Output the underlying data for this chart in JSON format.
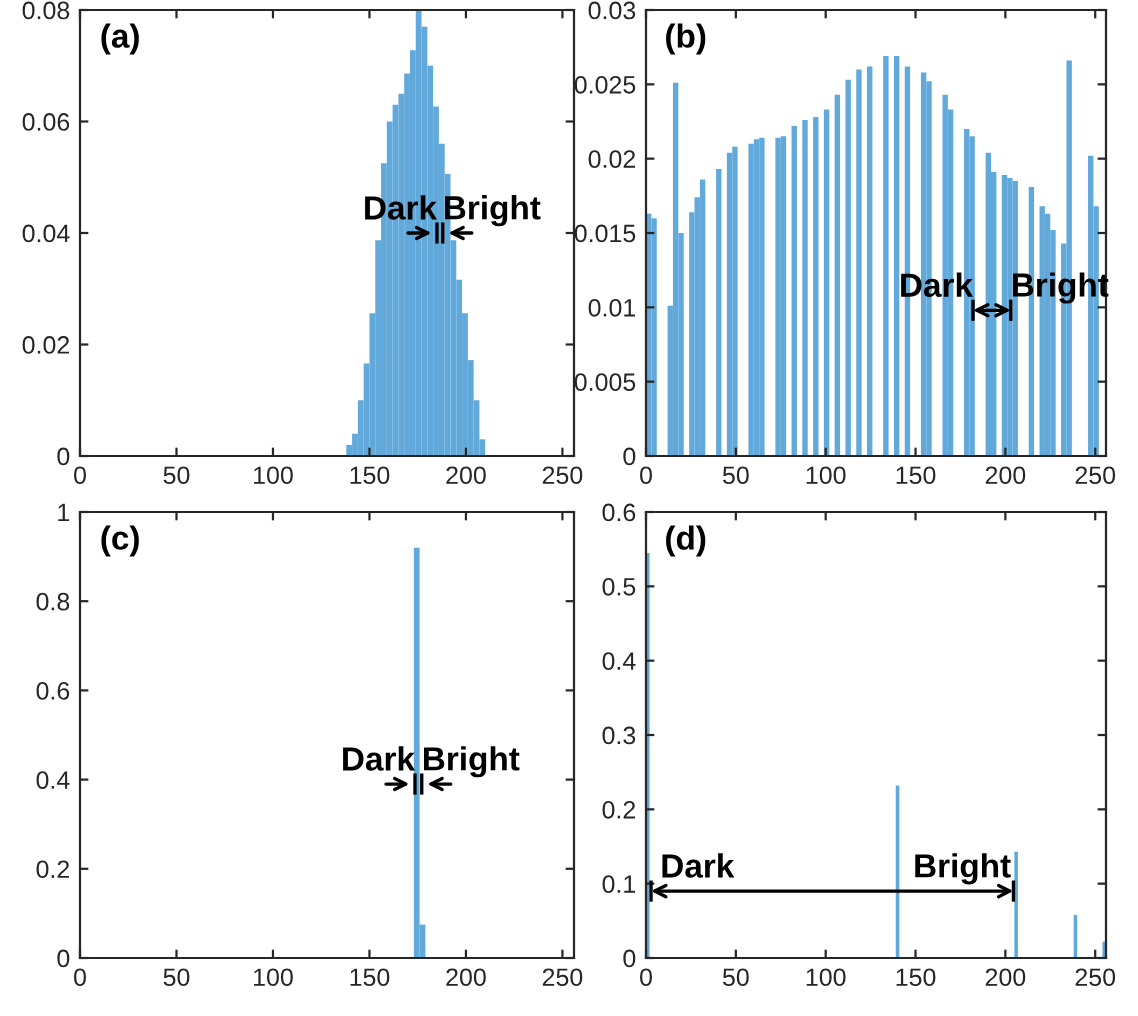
{
  "chart_data": [
    {
      "type": "histogram",
      "title": "(a)",
      "color": "#62a9db",
      "bins": [
        138,
        141,
        144,
        147,
        150,
        153,
        156,
        159,
        162,
        165,
        168,
        171,
        174,
        177,
        180,
        183,
        186,
        189,
        192,
        195,
        198,
        201,
        204,
        207,
        210
      ],
      "values": [
        0.002,
        0.004,
        0.01,
        0.0166,
        0.0256,
        0.0387,
        0.0525,
        0.06,
        0.063,
        0.065,
        0.0686,
        0.0728,
        0.08,
        0.077,
        0.07,
        0.0627,
        0.056,
        0.0506,
        0.0387,
        0.0316,
        0.0256,
        0.0172,
        0.01,
        0.003
      ],
      "xlim": [
        0,
        256
      ],
      "xticks": [
        0,
        50,
        100,
        150,
        200,
        250
      ],
      "ylim": [
        0,
        0.08
      ],
      "yticks": [
        0,
        0.02,
        0.04,
        0.06,
        0.08
      ],
      "grid": false,
      "annotations": [
        {
          "text": "Dark",
          "x": 185,
          "y": 0.04
        },
        {
          "text": "Bright",
          "x": 188,
          "y": 0.04
        }
      ]
    },
    {
      "type": "histogram",
      "title": "(b)",
      "color": "#62a9db",
      "bins": [
        0,
        3,
        6,
        9,
        12,
        15,
        18,
        21,
        24,
        27,
        30,
        33,
        36,
        39,
        42,
        45,
        48,
        51,
        54,
        57,
        60,
        63,
        66,
        69,
        72,
        75,
        78,
        81,
        84,
        87,
        90,
        93,
        96,
        99,
        102,
        105,
        108,
        111,
        114,
        117,
        120,
        123,
        126,
        129,
        132,
        135,
        138,
        141,
        144,
        147,
        150,
        153,
        156,
        159,
        162,
        165,
        168,
        171,
        174,
        177,
        180,
        183,
        186,
        189,
        192,
        195,
        198,
        201,
        204,
        207,
        210,
        213,
        216,
        219,
        222,
        225,
        228,
        231,
        234,
        237,
        240,
        243,
        246,
        249,
        252,
        255
      ],
      "values": [
        0.0163,
        0.016,
        0,
        0,
        0.0101,
        0.0251,
        0.015,
        0,
        0.0164,
        0.0174,
        0.0186,
        0,
        0,
        0.0193,
        0,
        0.0204,
        0.0208,
        0,
        0,
        0.021,
        0.0213,
        0.0214,
        0,
        0,
        0.0214,
        0.0215,
        0,
        0.0222,
        0,
        0.0226,
        0,
        0.0228,
        0,
        0.0233,
        0,
        0.0243,
        0,
        0.0253,
        0,
        0.026,
        0,
        0.0262,
        0,
        0,
        0.0269,
        0,
        0.0269,
        0,
        0.0262,
        0,
        0,
        0.0258,
        0.0252,
        0,
        0,
        0.0243,
        0.0233,
        0,
        0,
        0.022,
        0.0215,
        0,
        0,
        0.0204,
        0.0191,
        0,
        0.0189,
        0.0187,
        0.0185,
        0,
        0,
        0.0181,
        0,
        0.0168,
        0.0163,
        0.0152,
        0,
        0.0143,
        0.0266,
        0,
        0,
        0,
        0.0202,
        0.0168,
        0
      ],
      "xlim": [
        0,
        256
      ],
      "xticks": [
        0,
        50,
        100,
        150,
        200,
        250
      ],
      "ylim": [
        0,
        0.03
      ],
      "yticks": [
        0,
        0.005,
        0.01,
        0.015,
        0.02,
        0.025,
        0.03
      ],
      "grid": false,
      "annotations": [
        {
          "text": "Dark",
          "x": 182,
          "y": 0.0098
        },
        {
          "text": "Bright",
          "x": 203,
          "y": 0.0098
        }
      ]
    },
    {
      "type": "histogram",
      "title": "(c)",
      "color": "#62a9db",
      "bins": [
        173,
        176,
        179
      ],
      "values": [
        0.92,
        0.075
      ],
      "xlim": [
        0,
        256
      ],
      "xticks": [
        0,
        50,
        100,
        150,
        200,
        250
      ],
      "ylim": [
        0,
        1
      ],
      "yticks": [
        0,
        0.2,
        0.4,
        0.6,
        0.8,
        1
      ],
      "grid": false,
      "annotations": [
        {
          "text": "Dark",
          "x": 173.6,
          "y": 0.39
        },
        {
          "text": "Bright",
          "x": 177.1,
          "y": 0.39
        }
      ]
    },
    {
      "type": "histogram",
      "title": "(d)",
      "color": "#62a9db",
      "bins": [
        0,
        2,
        139,
        141,
        205,
        207,
        238,
        240,
        254,
        256
      ],
      "values": [
        0.545,
        0,
        0.232,
        0,
        0.143,
        0,
        0.058,
        0,
        0.022
      ],
      "xlim": [
        0,
        256
      ],
      "xticks": [
        0,
        50,
        100,
        150,
        200,
        250
      ],
      "ylim": [
        0,
        0.6
      ],
      "yticks": [
        0,
        0.1,
        0.2,
        0.3,
        0.4,
        0.5,
        0.6
      ],
      "grid": false,
      "annotations": [
        {
          "text": "Dark",
          "x": 2.8,
          "y": 0.09
        },
        {
          "text": "Bright",
          "x": 204.5,
          "y": 0.09
        }
      ]
    }
  ]
}
